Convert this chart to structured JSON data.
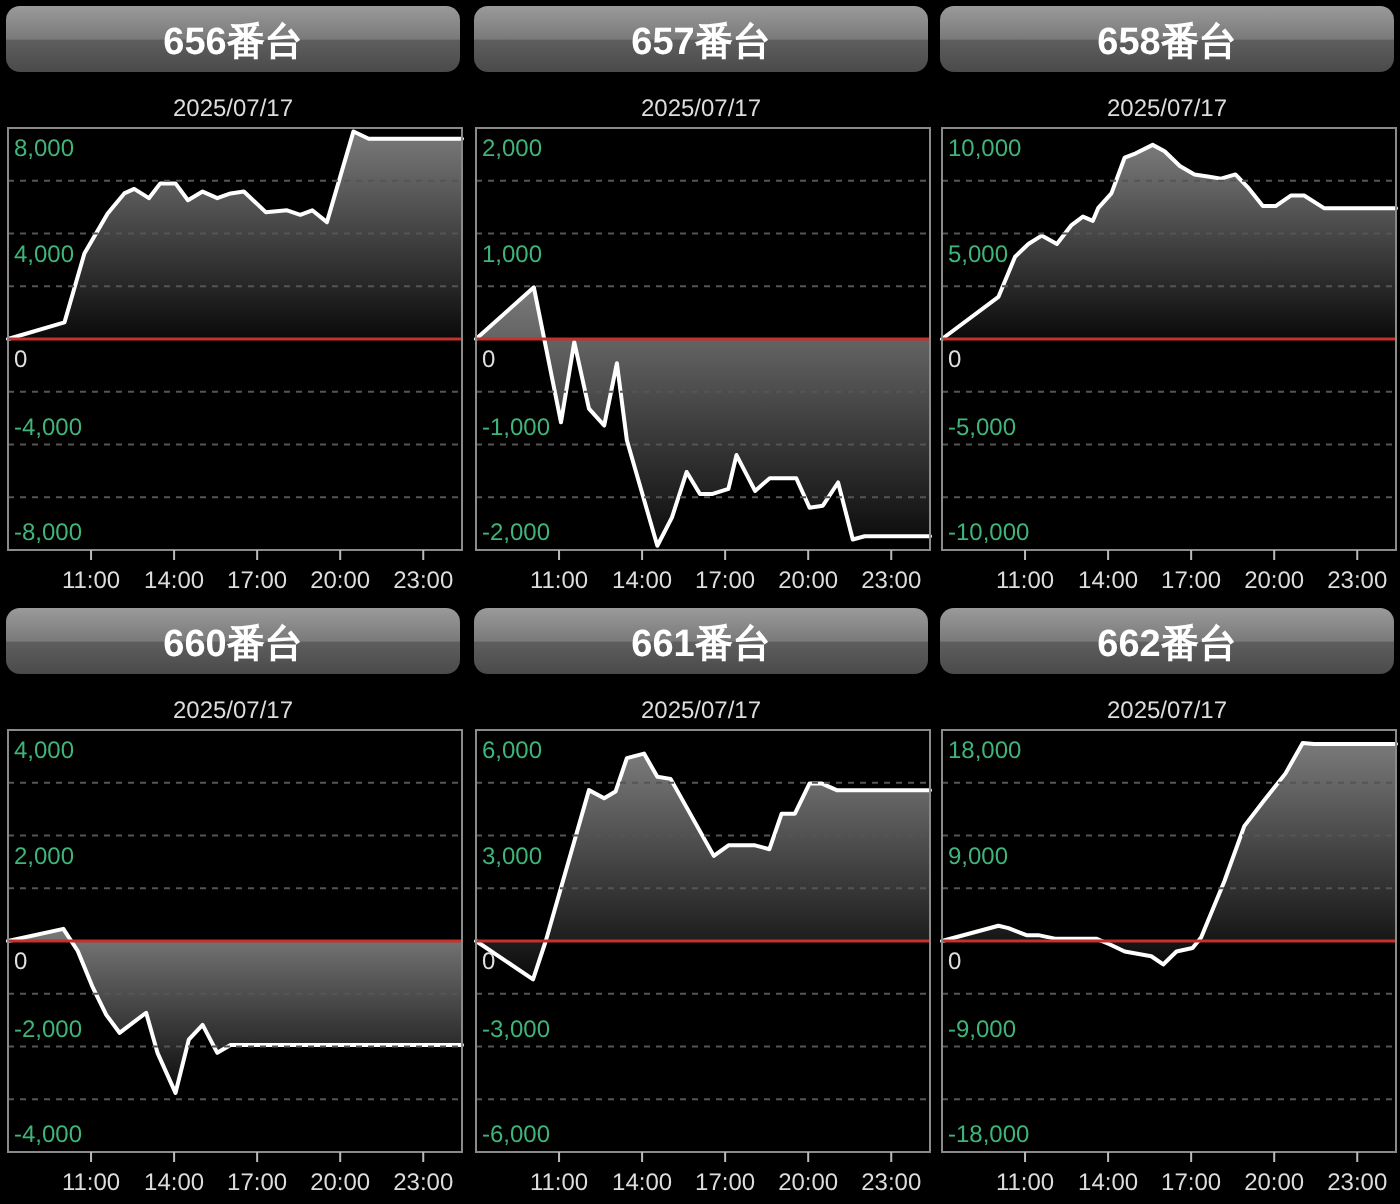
{
  "chart_data": [
    {
      "type": "area",
      "title": "656番台",
      "subtitle": "2025/07/17",
      "xlim": [
        8,
        24.4
      ],
      "ylim": [
        -8000,
        8000
      ],
      "xticks": [
        {
          "value": 11,
          "label": "11:00"
        },
        {
          "value": 14,
          "label": "14:00"
        },
        {
          "value": 17,
          "label": "17:00"
        },
        {
          "value": 20,
          "label": "20:00"
        },
        {
          "value": 23,
          "label": "23:00"
        }
      ],
      "yticks": [
        {
          "value": 8000,
          "label": "8,000"
        },
        {
          "value": 6000,
          "label": null
        },
        {
          "value": 4000,
          "label": "4,000"
        },
        {
          "value": 2000,
          "label": null
        },
        {
          "value": 0,
          "label": "0"
        },
        {
          "value": -2000,
          "label": null
        },
        {
          "value": -4000,
          "label": "-4,000"
        },
        {
          "value": -6000,
          "label": null
        },
        {
          "value": -8000,
          "label": "-8,000"
        }
      ],
      "grid": "y",
      "ref_lines": [
        {
          "axis": "y",
          "value": 0,
          "color": "#c8302c"
        }
      ],
      "x": [
        8,
        10.04,
        10.76,
        11.6,
        12.2,
        12.56,
        13.09,
        13.5,
        14.05,
        14.5,
        15.03,
        15.56,
        16.04,
        16.52,
        17.31,
        18.08,
        18.56,
        18.99,
        19.52,
        20.48,
        21.03,
        24.4
      ],
      "series": [
        {
          "color": "#ffffff",
          "values": [
            0,
            630,
            3240,
            4760,
            5520,
            5690,
            5340,
            5900,
            5900,
            5260,
            5590,
            5340,
            5520,
            5590,
            4810,
            4880,
            4710,
            4880,
            4430,
            7870,
            7590,
            7590
          ]
        }
      ]
    },
    {
      "type": "area",
      "title": "657番台",
      "subtitle": "2025/07/17",
      "xlim": [
        8,
        24.4
      ],
      "ylim": [
        -2000,
        2000
      ],
      "xticks": [
        {
          "value": 11,
          "label": "11:00"
        },
        {
          "value": 14,
          "label": "14:00"
        },
        {
          "value": 17,
          "label": "17:00"
        },
        {
          "value": 20,
          "label": "20:00"
        },
        {
          "value": 23,
          "label": "23:00"
        }
      ],
      "yticks": [
        {
          "value": 2000,
          "label": "2,000"
        },
        {
          "value": 1500,
          "label": null
        },
        {
          "value": 1000,
          "label": "1,000"
        },
        {
          "value": 500,
          "label": null
        },
        {
          "value": 0,
          "label": "0"
        },
        {
          "value": -500,
          "label": null
        },
        {
          "value": -1000,
          "label": "-1,000"
        },
        {
          "value": -1500,
          "label": null
        },
        {
          "value": -2000,
          "label": "-2,000"
        }
      ],
      "grid": "y",
      "ref_lines": [
        {
          "axis": "y",
          "value": 0,
          "color": "#c8302c"
        }
      ],
      "x": [
        8,
        10.09,
        11.07,
        11.55,
        12.08,
        12.63,
        13.09,
        13.45,
        14.55,
        15.08,
        15.61,
        16.09,
        16.52,
        17.12,
        17.41,
        18.08,
        18.61,
        19.57,
        20.05,
        20.53,
        21.08,
        21.61,
        22.04,
        24.4
      ],
      "series": [
        {
          "color": "#ffffff",
          "values": [
            0,
            490,
            -790,
            -30,
            -660,
            -820,
            -230,
            -960,
            -1960,
            -1690,
            -1260,
            -1470,
            -1470,
            -1420,
            -1100,
            -1440,
            -1320,
            -1320,
            -1600,
            -1580,
            -1360,
            -1900,
            -1870,
            -1870
          ]
        }
      ]
    },
    {
      "type": "area",
      "title": "658番台",
      "subtitle": "2025/07/17",
      "xlim": [
        8,
        24.4
      ],
      "ylim": [
        -10000,
        10000
      ],
      "xticks": [
        {
          "value": 11,
          "label": "11:00"
        },
        {
          "value": 14,
          "label": "14:00"
        },
        {
          "value": 17,
          "label": "17:00"
        },
        {
          "value": 20,
          "label": "20:00"
        },
        {
          "value": 23,
          "label": "23:00"
        }
      ],
      "yticks": [
        {
          "value": 10000,
          "label": "10,000"
        },
        {
          "value": 7500,
          "label": null
        },
        {
          "value": 5000,
          "label": "5,000"
        },
        {
          "value": 2500,
          "label": null
        },
        {
          "value": 0,
          "label": "0"
        },
        {
          "value": -2500,
          "label": null
        },
        {
          "value": -5000,
          "label": "-5,000"
        },
        {
          "value": -7500,
          "label": null
        },
        {
          "value": -10000,
          "label": "-10,000"
        }
      ],
      "grid": "y",
      "ref_lines": [
        {
          "axis": "y",
          "value": 0,
          "color": "#c8302c"
        }
      ],
      "x": [
        8,
        10.04,
        10.64,
        11.12,
        11.6,
        12.15,
        12.68,
        13.09,
        13.45,
        13.64,
        14.12,
        14.6,
        15.0,
        15.61,
        16.04,
        16.59,
        17.12,
        17.6,
        18.08,
        18.6,
        19.04,
        19.59,
        20.05,
        20.6,
        21.08,
        21.8,
        24.4
      ],
      "series": [
        {
          "color": "#ffffff",
          "values": [
            0,
            2000,
            3900,
            4500,
            4900,
            4500,
            5400,
            5800,
            5600,
            6200,
            6900,
            8600,
            8800,
            9200,
            8900,
            8200,
            7800,
            7700,
            7600,
            7800,
            7200,
            6300,
            6300,
            6800,
            6800,
            6200,
            6200
          ]
        }
      ]
    },
    {
      "type": "area",
      "title": "660番台",
      "subtitle": "2025/07/17",
      "xlim": [
        8,
        24.4
      ],
      "ylim": [
        -4000,
        4000
      ],
      "xticks": [
        {
          "value": 11,
          "label": "11:00"
        },
        {
          "value": 14,
          "label": "14:00"
        },
        {
          "value": 17,
          "label": "17:00"
        },
        {
          "value": 20,
          "label": "20:00"
        },
        {
          "value": 23,
          "label": "23:00"
        }
      ],
      "yticks": [
        {
          "value": 4000,
          "label": "4,000"
        },
        {
          "value": 3000,
          "label": null
        },
        {
          "value": 2000,
          "label": "2,000"
        },
        {
          "value": 1000,
          "label": null
        },
        {
          "value": 0,
          "label": "0"
        },
        {
          "value": -1000,
          "label": null
        },
        {
          "value": -2000,
          "label": "-2,000"
        },
        {
          "value": -3000,
          "label": null
        },
        {
          "value": -4000,
          "label": "-4,000"
        }
      ],
      "grid": "y",
      "ref_lines": [
        {
          "axis": "y",
          "value": 0,
          "color": "#c8302c"
        }
      ],
      "x": [
        8,
        10.0,
        10.52,
        11.07,
        11.55,
        12.03,
        12.99,
        13.4,
        14.05,
        14.53,
        15.03,
        15.56,
        16.04,
        24.4
      ],
      "series": [
        {
          "color": "#ffffff",
          "values": [
            0,
            230,
            -190,
            -890,
            -1400,
            -1740,
            -1360,
            -2120,
            -2880,
            -1870,
            -1590,
            -2120,
            -1970,
            -1970
          ]
        }
      ]
    },
    {
      "type": "area",
      "title": "661番台",
      "subtitle": "2025/07/17",
      "xlim": [
        8,
        24.4
      ],
      "ylim": [
        -6000,
        6000
      ],
      "xticks": [
        {
          "value": 11,
          "label": "11:00"
        },
        {
          "value": 14,
          "label": "14:00"
        },
        {
          "value": 17,
          "label": "17:00"
        },
        {
          "value": 20,
          "label": "20:00"
        },
        {
          "value": 23,
          "label": "23:00"
        }
      ],
      "yticks": [
        {
          "value": 6000,
          "label": "6,000"
        },
        {
          "value": 4500,
          "label": null
        },
        {
          "value": 3000,
          "label": "3,000"
        },
        {
          "value": 1500,
          "label": null
        },
        {
          "value": 0,
          "label": "0"
        },
        {
          "value": -1500,
          "label": null
        },
        {
          "value": -3000,
          "label": "-3,000"
        },
        {
          "value": -4500,
          "label": null
        },
        {
          "value": -6000,
          "label": "-6,000"
        }
      ],
      "grid": "y",
      "ref_lines": [
        {
          "axis": "y",
          "value": 0,
          "color": "#c8302c"
        }
      ],
      "x": [
        8,
        10.06,
        10.52,
        12.08,
        12.63,
        13.04,
        13.45,
        14.07,
        14.55,
        15.03,
        16.59,
        17.12,
        18.08,
        18.6,
        19.04,
        19.52,
        20.05,
        20.48,
        21.03,
        24.4
      ],
      "series": [
        {
          "color": "#ffffff",
          "values": [
            0,
            -1090,
            0,
            4290,
            4060,
            4250,
            5200,
            5330,
            4670,
            4610,
            2420,
            2720,
            2720,
            2610,
            3620,
            3620,
            4480,
            4480,
            4290,
            4290
          ]
        }
      ]
    },
    {
      "type": "area",
      "title": "662番台",
      "subtitle": "2025/07/17",
      "xlim": [
        8,
        24.4
      ],
      "ylim": [
        -18000,
        18000
      ],
      "xticks": [
        {
          "value": 11,
          "label": "11:00"
        },
        {
          "value": 14,
          "label": "14:00"
        },
        {
          "value": 17,
          "label": "17:00"
        },
        {
          "value": 20,
          "label": "20:00"
        },
        {
          "value": 23,
          "label": "23:00"
        }
      ],
      "yticks": [
        {
          "value": 18000,
          "label": "18,000"
        },
        {
          "value": 13500,
          "label": null
        },
        {
          "value": 9000,
          "label": "9,000"
        },
        {
          "value": 4500,
          "label": null
        },
        {
          "value": 0,
          "label": "0"
        },
        {
          "value": -4500,
          "label": null
        },
        {
          "value": -9000,
          "label": "-9,000"
        },
        {
          "value": -13500,
          "label": null
        },
        {
          "value": -18000,
          "label": "-18,000"
        }
      ],
      "grid": "y",
      "ref_lines": [
        {
          "axis": "y",
          "value": 0,
          "color": "#c8302c"
        }
      ],
      "x": [
        8,
        10.04,
        10.4,
        11.05,
        11.48,
        12.08,
        13.57,
        14.07,
        14.6,
        15.56,
        15.99,
        16.47,
        17.05,
        17.36,
        18.2,
        18.92,
        19.64,
        20.41,
        21.03,
        21.44,
        24.4
      ],
      "series": [
        {
          "color": "#ffffff",
          "values": [
            0,
            1300,
            1100,
            500,
            500,
            200,
            200,
            -300,
            -900,
            -1300,
            -2000,
            -900,
            -600,
            300,
            5100,
            9800,
            12000,
            14300,
            16900,
            16800,
            16800
          ]
        }
      ]
    }
  ]
}
